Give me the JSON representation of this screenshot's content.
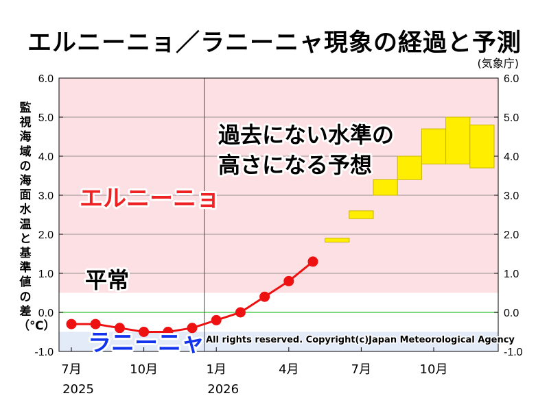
{
  "title": "エルニーニョ／ラニーニャ現象の経過と予測",
  "source": "(気象庁)",
  "colors": {
    "elnino_zone": "#fde0e3",
    "lanina_zone": "#e3eaf8",
    "normal_zone": "#ffffff",
    "observed_line": "#ee1111",
    "forecast_box": "#ffee00",
    "zero_line": "#55cc55"
  },
  "chart_data": {
    "type": "line",
    "title": "エルニーニョ／ラニーニャ現象の経過と予測",
    "ylabel": "監視海域の海面水温と基準値の差（℃）",
    "ylim": [
      -1.0,
      6.0
    ],
    "yticks": [
      "6.0",
      "5.0",
      "4.0",
      "3.0",
      "2.0",
      "1.0",
      "0.0",
      "-1.0"
    ],
    "x_tick_labels": [
      {
        "month": "2025-07",
        "label": "7月",
        "year": "2025"
      },
      {
        "month": "2025-10",
        "label": "10月"
      },
      {
        "month": "2026-01",
        "label": "1月",
        "year": "2026"
      },
      {
        "month": "2026-04",
        "label": "4月"
      },
      {
        "month": "2026-07",
        "label": "7月"
      },
      {
        "month": "2026-10",
        "label": "10月"
      }
    ],
    "zones": [
      {
        "name": "エルニーニョ",
        "from": 0.5,
        "to": 6.0
      },
      {
        "name": "平常",
        "from": -0.5,
        "to": 0.5
      },
      {
        "name": "ラニーニャ",
        "from": -1.0,
        "to": -0.5
      }
    ],
    "observed": {
      "months": [
        "2025-07",
        "2025-08",
        "2025-09",
        "2025-10",
        "2025-11",
        "2025-12",
        "2026-01",
        "2026-02",
        "2026-03",
        "2026-04",
        "2026-05"
      ],
      "values": [
        -0.3,
        -0.3,
        -0.4,
        -0.5,
        -0.5,
        -0.4,
        -0.2,
        0.0,
        0.4,
        0.8,
        1.3
      ]
    },
    "forecast": [
      {
        "month": "2026-06",
        "low": 1.8,
        "high": 1.9
      },
      {
        "month": "2026-07",
        "low": 2.4,
        "high": 2.6
      },
      {
        "month": "2026-08",
        "low": 3.0,
        "high": 3.4
      },
      {
        "month": "2026-09",
        "low": 3.4,
        "high": 4.0
      },
      {
        "month": "2026-10",
        "low": 3.8,
        "high": 4.7
      },
      {
        "month": "2026-11",
        "low": 3.8,
        "high": 5.0
      },
      {
        "month": "2026-12",
        "low": 3.7,
        "high": 4.8
      }
    ],
    "annotations": {
      "forecast_note": [
        "過去にない水準の",
        "高さになる予想"
      ],
      "elnino_label": "エルニーニョ",
      "normal_label": "平常",
      "lanina_label": "ラニーニャ",
      "copyright": "All rights reserved. Copyright(c)Japan Meteorological Agency"
    }
  }
}
